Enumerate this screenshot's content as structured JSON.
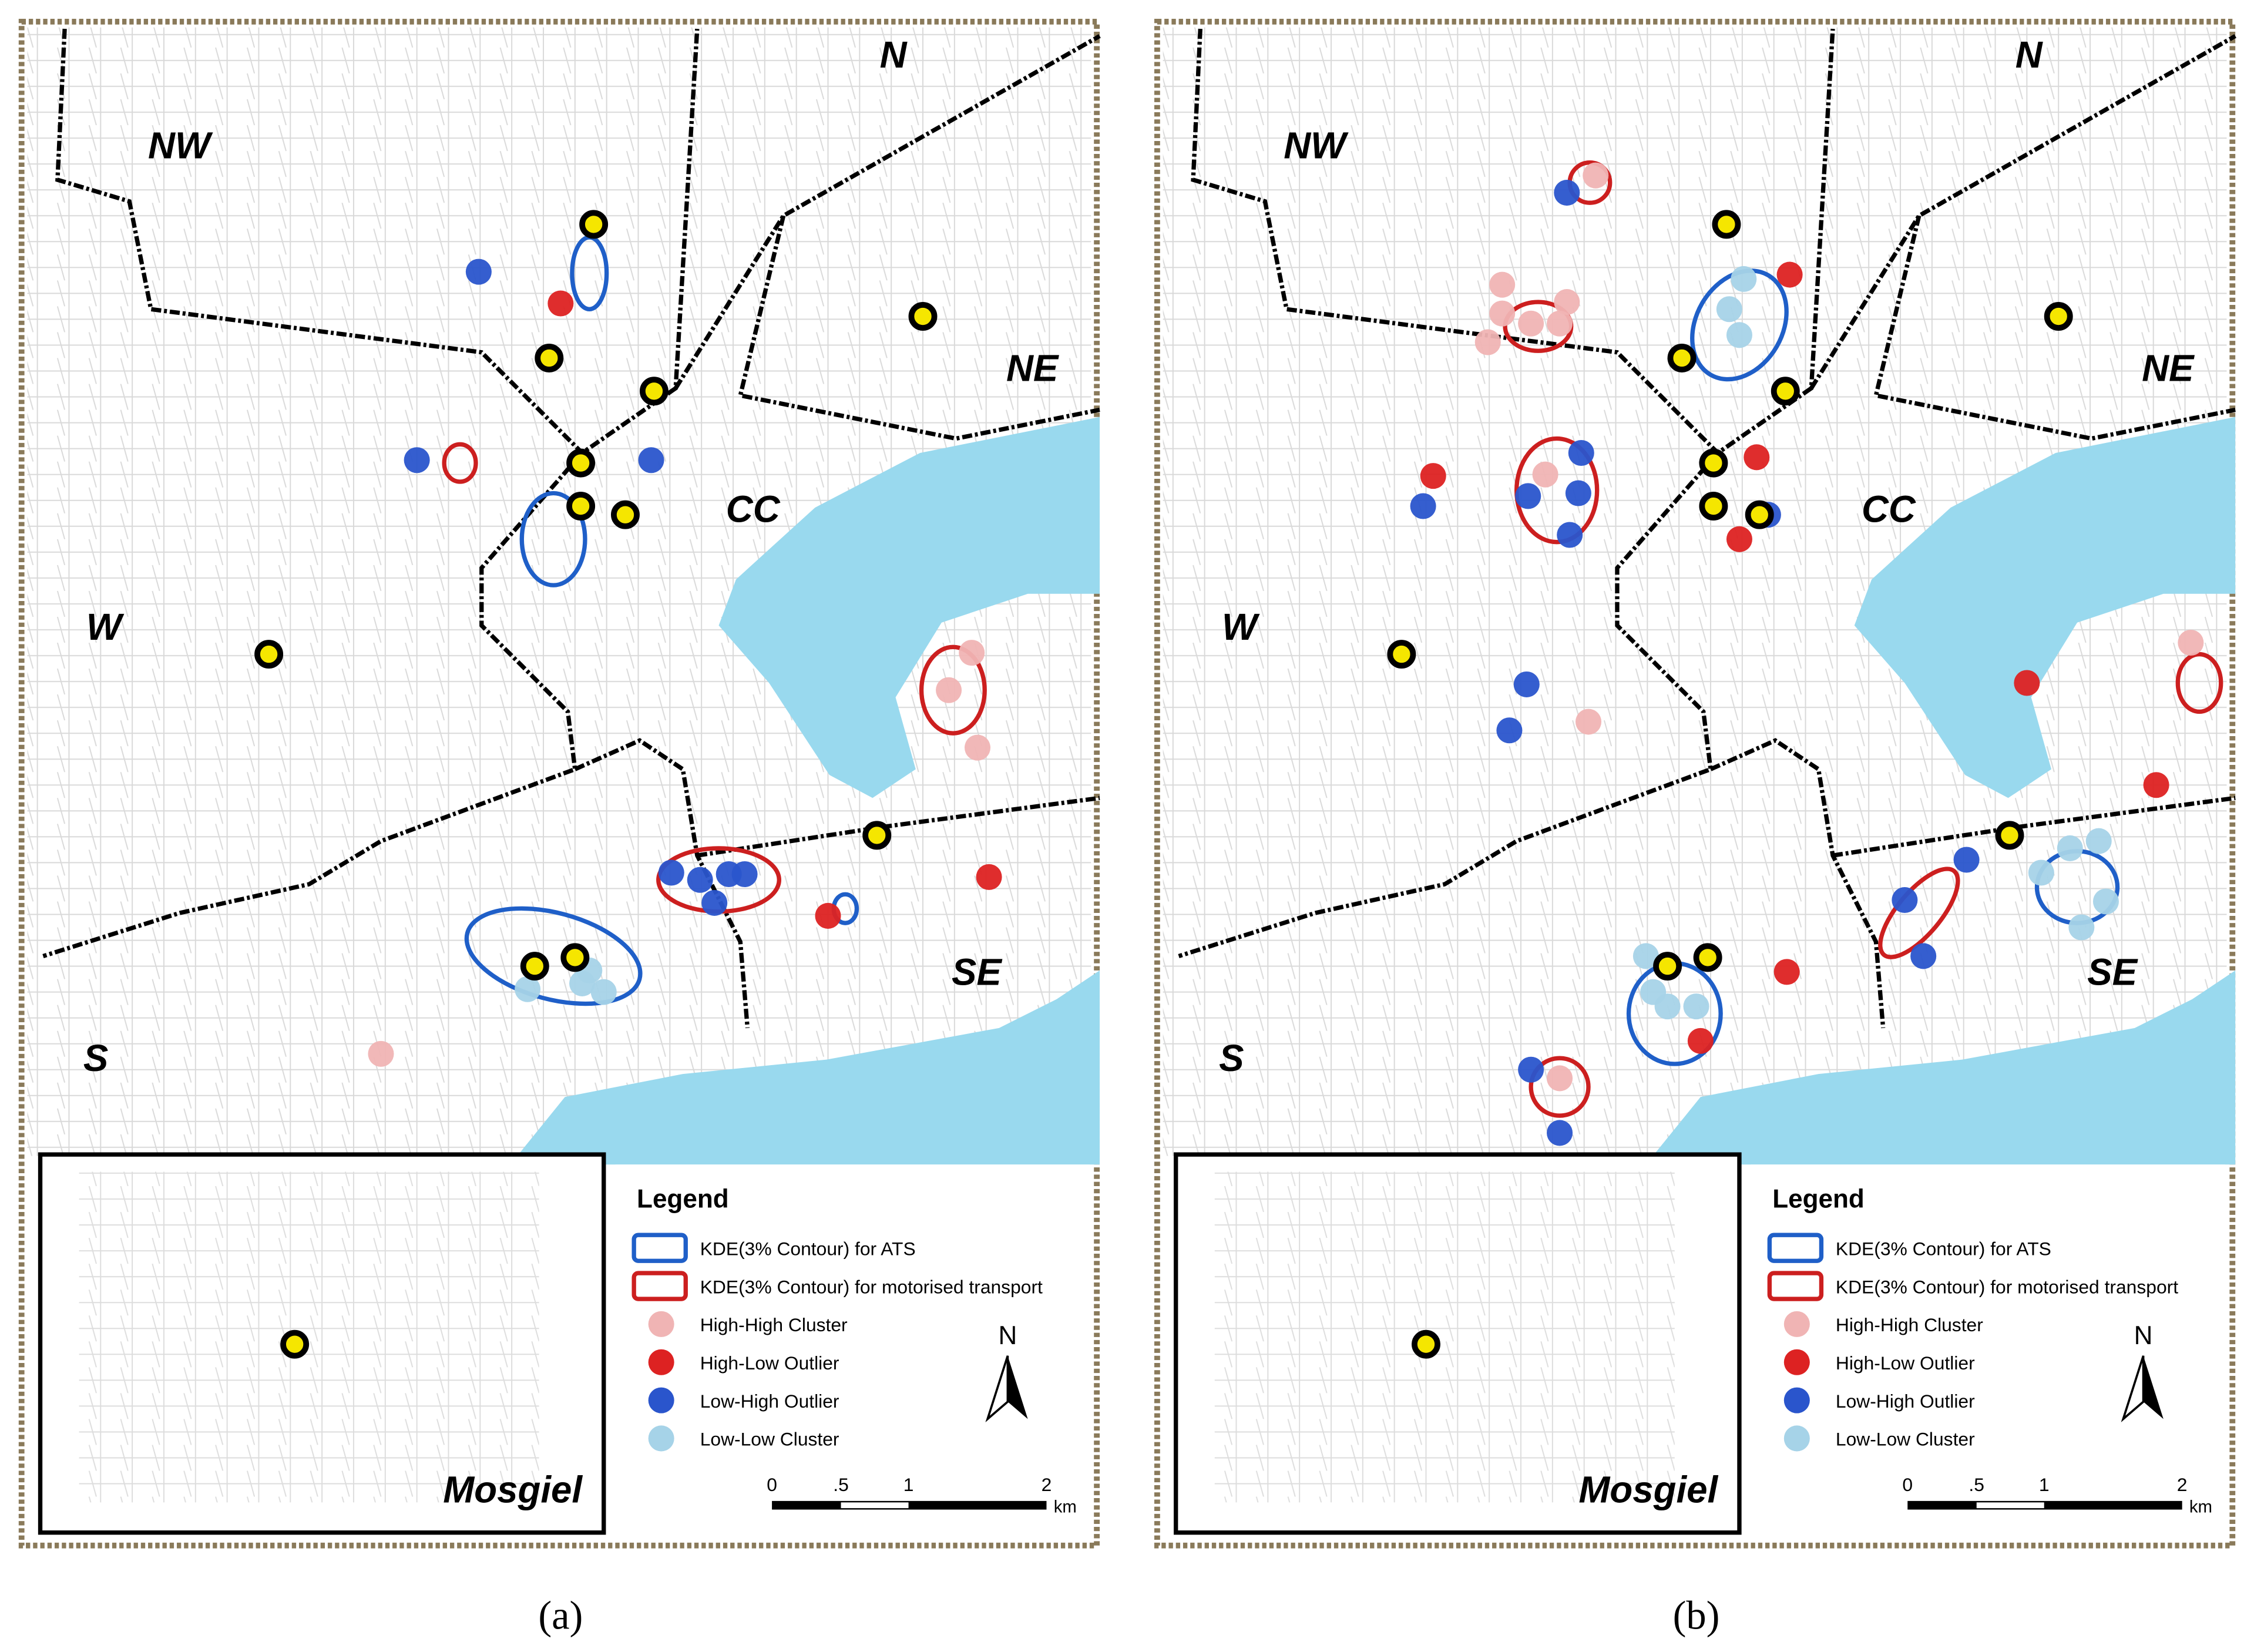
{
  "panels": [
    {
      "caption": "(a)",
      "region_labels": [
        "N",
        "NW",
        "NE",
        "CC",
        "W",
        "S",
        "SE"
      ],
      "inset_label": "Mosgiel",
      "north_label": "N",
      "legend": {
        "title": "Legend",
        "items": [
          "KDE(3% Contour) for ATS",
          "KDE(3% Contour) for motorised transport",
          "High-High Cluster",
          "High-Low Outlier",
          "Low-High Outlier",
          "Low-Low Cluster"
        ]
      },
      "scale_bar": {
        "labels": [
          "0",
          ".5",
          "1",
          "2"
        ],
        "unit": "km"
      }
    },
    {
      "caption": "(b)",
      "region_labels": [
        "N",
        "NW",
        "NE",
        "CC",
        "W",
        "S",
        "SE"
      ],
      "inset_label": "Mosgiel",
      "north_label": "N",
      "legend": {
        "title": "Legend",
        "items": [
          "KDE(3% Contour) for ATS",
          "KDE(3% Contour) for motorised transport",
          "High-High Cluster",
          "High-Low Outlier",
          "Low-High Outlier",
          "Low-Low Cluster"
        ]
      },
      "scale_bar": {
        "labels": [
          "0",
          ".5",
          "1",
          "2"
        ],
        "unit": "km"
      }
    }
  ]
}
